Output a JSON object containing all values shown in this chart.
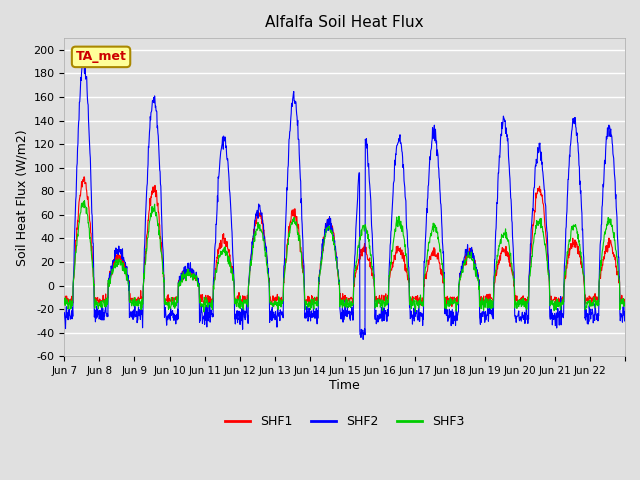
{
  "title": "Alfalfa Soil Heat Flux",
  "ylabel": "Soil Heat Flux (W/m2)",
  "xlabel": "Time",
  "ylim": [
    -60,
    210
  ],
  "yticks": [
    -60,
    -40,
    -20,
    0,
    20,
    40,
    60,
    80,
    100,
    120,
    140,
    160,
    180,
    200
  ],
  "xtick_labels": [
    "Jun 7",
    "Jun 8",
    "Jun 9",
    "Jun 10",
    "Jun 11",
    "Jun 12",
    "Jun 13",
    "Jun 14",
    "Jun 15",
    "Jun 16",
    "Jun 17",
    "Jun 18",
    "Jun 19",
    "Jun 20",
    "Jun 21",
    "Jun 22",
    ""
  ],
  "xtick_positions": [
    0,
    1,
    2,
    3,
    4,
    5,
    6,
    7,
    8,
    9,
    10,
    11,
    12,
    13,
    14,
    15,
    16
  ],
  "shf1_color": "#ff0000",
  "shf2_color": "#0000ff",
  "shf3_color": "#00cc00",
  "annotation_text": "TA_met",
  "annotation_color": "#cc0000",
  "annotation_bg": "#ffff99",
  "background_color": "#e0e0e0",
  "grid_color": "#ffffff",
  "n_days": 16,
  "points_per_day": 96,
  "shf2_peaks": [
    190,
    30,
    160,
    15,
    125,
    65,
    160,
    55,
    130,
    125,
    130,
    30,
    140,
    115,
    140,
    135
  ],
  "shf1_peaks": [
    90,
    25,
    82,
    12,
    40,
    62,
    62,
    55,
    30,
    30,
    27,
    27,
    30,
    82,
    36,
    34
  ],
  "shf3_peaks": [
    70,
    20,
    65,
    10,
    30,
    50,
    55,
    50,
    50,
    55,
    50,
    25,
    45,
    55,
    50,
    55
  ],
  "shf1_night": -12,
  "shf2_night": -25,
  "shf3_night": -15
}
